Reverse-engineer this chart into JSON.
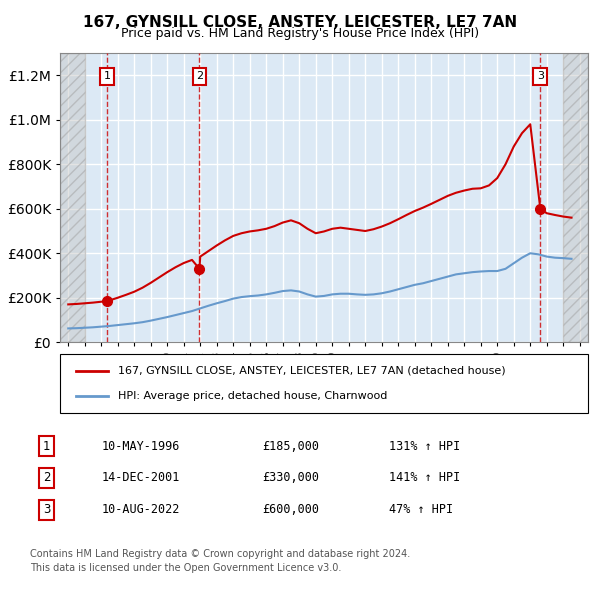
{
  "title": "167, GYNSILL CLOSE, ANSTEY, LEICESTER, LE7 7AN",
  "subtitle": "Price paid vs. HM Land Registry's House Price Index (HPI)",
  "legend_line1": "167, GYNSILL CLOSE, ANSTEY, LEICESTER, LE7 7AN (detached house)",
  "legend_line2": "HPI: Average price, detached house, Charnwood",
  "footnote": "Contains HM Land Registry data © Crown copyright and database right 2024.\nThis data is licensed under the Open Government Licence v3.0.",
  "transactions": [
    {
      "num": 1,
      "date": "10-MAY-1996",
      "price": 185000,
      "year": 1996.36,
      "hpi_pct": "131%",
      "arrow": "↑"
    },
    {
      "num": 2,
      "date": "14-DEC-2001",
      "price": 330000,
      "year": 2001.95,
      "hpi_pct": "141%",
      "arrow": "↑"
    },
    {
      "num": 3,
      "date": "10-AUG-2022",
      "price": 600000,
      "year": 2022.61,
      "hpi_pct": "47%",
      "arrow": "↑"
    }
  ],
  "ylim": [
    0,
    1300000
  ],
  "xlim": [
    1993.5,
    2025.5
  ],
  "plot_bg_color": "#dce9f5",
  "hatch_color": "#b0b0b0",
  "red_color": "#cc0000",
  "blue_color": "#6699cc",
  "grid_color": "#ffffff",
  "hpi_line": {
    "years": [
      1994,
      1994.5,
      1995,
      1995.5,
      1996,
      1996.5,
      1997,
      1997.5,
      1998,
      1998.5,
      1999,
      1999.5,
      2000,
      2000.5,
      2001,
      2001.5,
      2002,
      2002.5,
      2003,
      2003.5,
      2004,
      2004.5,
      2005,
      2005.5,
      2006,
      2006.5,
      2007,
      2007.5,
      2008,
      2008.5,
      2009,
      2009.5,
      2010,
      2010.5,
      2011,
      2011.5,
      2012,
      2012.5,
      2013,
      2013.5,
      2014,
      2014.5,
      2015,
      2015.5,
      2016,
      2016.5,
      2017,
      2017.5,
      2018,
      2018.5,
      2019,
      2019.5,
      2020,
      2020.5,
      2021,
      2021.5,
      2022,
      2022.5,
      2023,
      2023.5,
      2024,
      2024.5
    ],
    "values": [
      62000,
      63000,
      65000,
      67000,
      70000,
      73000,
      77000,
      81000,
      85000,
      90000,
      97000,
      105000,
      113000,
      122000,
      131000,
      140000,
      152000,
      164000,
      175000,
      185000,
      196000,
      203000,
      207000,
      210000,
      215000,
      222000,
      230000,
      233000,
      228000,
      215000,
      205000,
      208000,
      215000,
      218000,
      218000,
      215000,
      213000,
      215000,
      220000,
      228000,
      238000,
      248000,
      258000,
      265000,
      275000,
      285000,
      295000,
      305000,
      310000,
      315000,
      318000,
      320000,
      320000,
      330000,
      355000,
      380000,
      400000,
      395000,
      385000,
      380000,
      378000,
      375000
    ]
  },
  "price_line": {
    "years": [
      1994,
      1994.5,
      1995,
      1995.5,
      1996,
      1996.36,
      1996.5,
      1997,
      1997.5,
      1998,
      1998.5,
      1999,
      1999.5,
      2000,
      2000.5,
      2001,
      2001.5,
      2001.95,
      2002,
      2002.5,
      2003,
      2003.5,
      2004,
      2004.5,
      2005,
      2005.5,
      2006,
      2006.5,
      2007,
      2007.5,
      2008,
      2008.5,
      2009,
      2009.5,
      2010,
      2010.5,
      2011,
      2011.5,
      2012,
      2012.5,
      2013,
      2013.5,
      2014,
      2014.5,
      2015,
      2015.5,
      2016,
      2016.5,
      2017,
      2017.5,
      2018,
      2018.5,
      2019,
      2019.5,
      2020,
      2020.5,
      2021,
      2021.5,
      2022,
      2022.61,
      2022.8,
      2023,
      2023.5,
      2024,
      2024.5
    ],
    "values": [
      170000,
      172000,
      175000,
      178000,
      182000,
      185000,
      188000,
      200000,
      213000,
      227000,
      245000,
      267000,
      291000,
      315000,
      337000,
      356000,
      370000,
      330000,
      385000,
      410000,
      435000,
      458000,
      478000,
      490000,
      498000,
      503000,
      510000,
      522000,
      538000,
      548000,
      535000,
      510000,
      490000,
      498000,
      510000,
      515000,
      510000,
      505000,
      500000,
      508000,
      520000,
      535000,
      553000,
      572000,
      590000,
      605000,
      622000,
      640000,
      658000,
      672000,
      682000,
      690000,
      692000,
      705000,
      738000,
      800000,
      880000,
      940000,
      980000,
      600000,
      590000,
      580000,
      572000,
      565000,
      560000
    ]
  }
}
